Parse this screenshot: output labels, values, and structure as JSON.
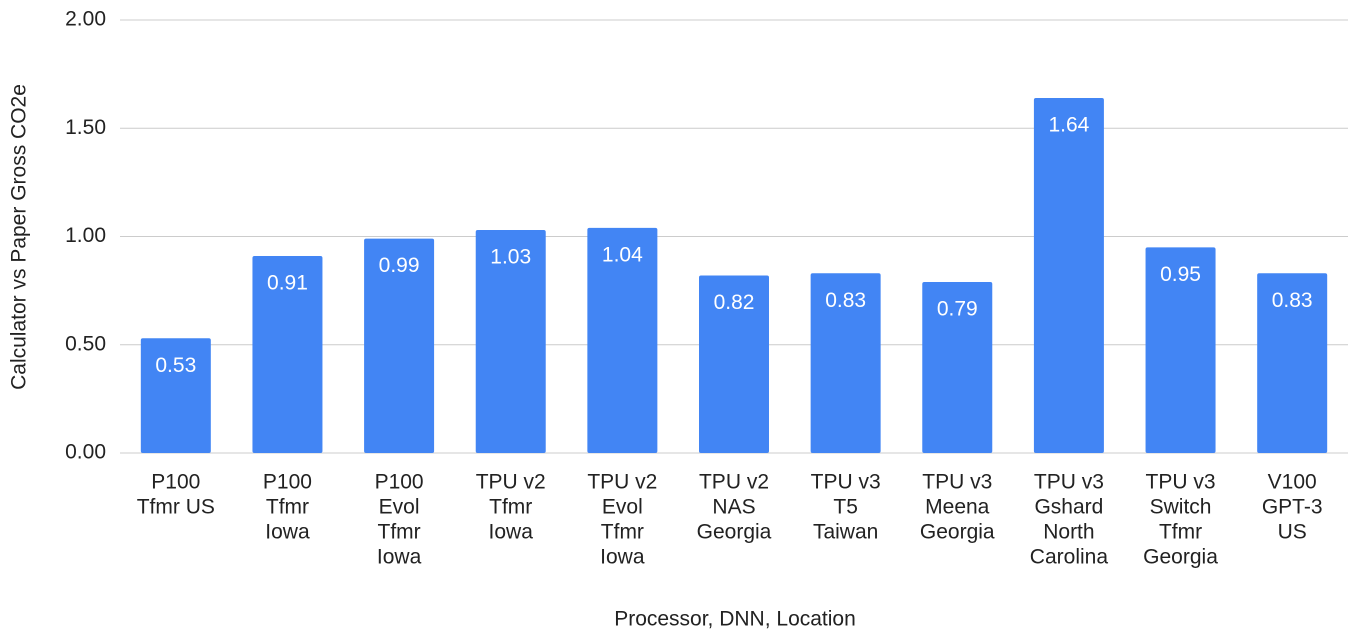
{
  "chart_data": {
    "type": "bar",
    "xlabel": "Processor, DNN, Location",
    "ylabel": "Calculator vs Paper Gross CO2e",
    "categories": [
      [
        "P100",
        "Tfmr US"
      ],
      [
        "P100",
        "Tfmr",
        "Iowa"
      ],
      [
        "P100",
        "Evol",
        "Tfmr",
        "Iowa"
      ],
      [
        "TPU v2",
        "Tfmr",
        "Iowa"
      ],
      [
        "TPU v2",
        "Evol",
        "Tfmr",
        "Iowa"
      ],
      [
        "TPU v2",
        "NAS",
        "Georgia"
      ],
      [
        "TPU v3",
        "T5",
        "Taiwan"
      ],
      [
        "TPU v3",
        "Meena",
        "Georgia"
      ],
      [
        "TPU v3",
        "Gshard",
        "North",
        "Carolina"
      ],
      [
        "TPU v3",
        "Switch",
        "Tfmr",
        "Georgia"
      ],
      [
        "V100",
        "GPT-3",
        "US"
      ]
    ],
    "values": [
      0.53,
      0.91,
      0.99,
      1.03,
      1.04,
      0.82,
      0.83,
      0.79,
      1.64,
      0.95,
      0.83
    ],
    "color": "#4285f4",
    "ylim": [
      0,
      2
    ],
    "yticks": [
      {
        "value": 0,
        "label": "0.00"
      },
      {
        "value": 0.5,
        "label": "0.50"
      },
      {
        "value": 1,
        "label": "1.00"
      },
      {
        "value": 1.5,
        "label": "1.50"
      },
      {
        "value": 2,
        "label": "2.00"
      }
    ],
    "grid": true
  }
}
